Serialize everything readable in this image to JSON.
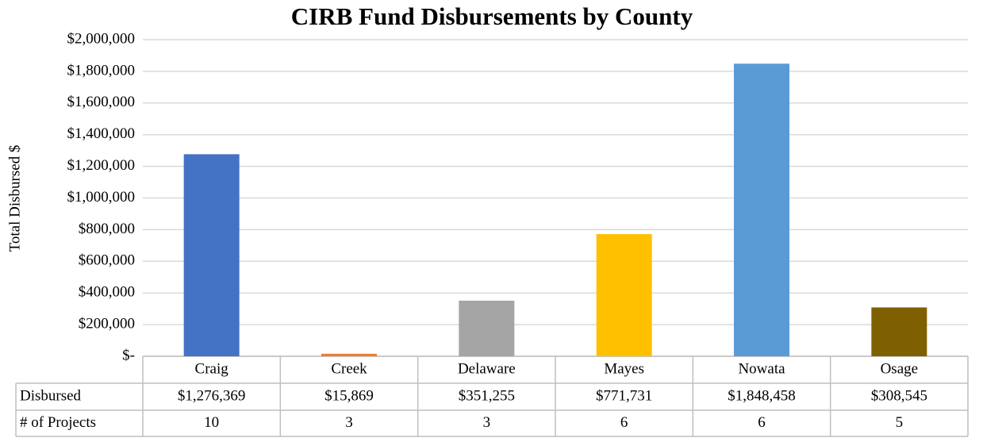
{
  "chart_data": {
    "type": "bar",
    "title": "CIRB Fund Disbursements by County",
    "y_label": "Total Disbursed $",
    "categories": [
      "Craig",
      "Creek",
      "Delaware",
      "Mayes",
      "Nowata",
      "Osage"
    ],
    "series": [
      {
        "name": "Disbursed",
        "colors": [
          "#4472c4",
          "#ed7d31",
          "#a5a5a5",
          "#ffc000",
          "#5b9bd5",
          "#7f6000"
        ],
        "values": [
          1276369,
          15869,
          351255,
          771731,
          1848458,
          308545
        ],
        "value_labels": [
          "$1,276,369",
          "$15,869",
          "$351,255",
          "$771,731",
          "$1,848,458",
          "$308,545"
        ]
      }
    ],
    "table_rows": [
      {
        "name": "# of Projects",
        "values": [
          10,
          3,
          3,
          6,
          6,
          5
        ]
      }
    ],
    "ylim": [
      0,
      2000000
    ],
    "yticks": [
      {
        "value": 0,
        "label": "$-"
      },
      {
        "value": 200000,
        "label": "$200,000"
      },
      {
        "value": 400000,
        "label": "$400,000"
      },
      {
        "value": 600000,
        "label": "$600,000"
      },
      {
        "value": 800000,
        "label": "$800,000"
      },
      {
        "value": 1000000,
        "label": "$1,000,000"
      },
      {
        "value": 1200000,
        "label": "$1,200,000"
      },
      {
        "value": 1400000,
        "label": "$1,400,000"
      },
      {
        "value": 1600000,
        "label": "$1,600,000"
      },
      {
        "value": 1800000,
        "label": "$1,800,000"
      },
      {
        "value": 2000000,
        "label": "$2,000,000"
      }
    ],
    "grid": true
  }
}
